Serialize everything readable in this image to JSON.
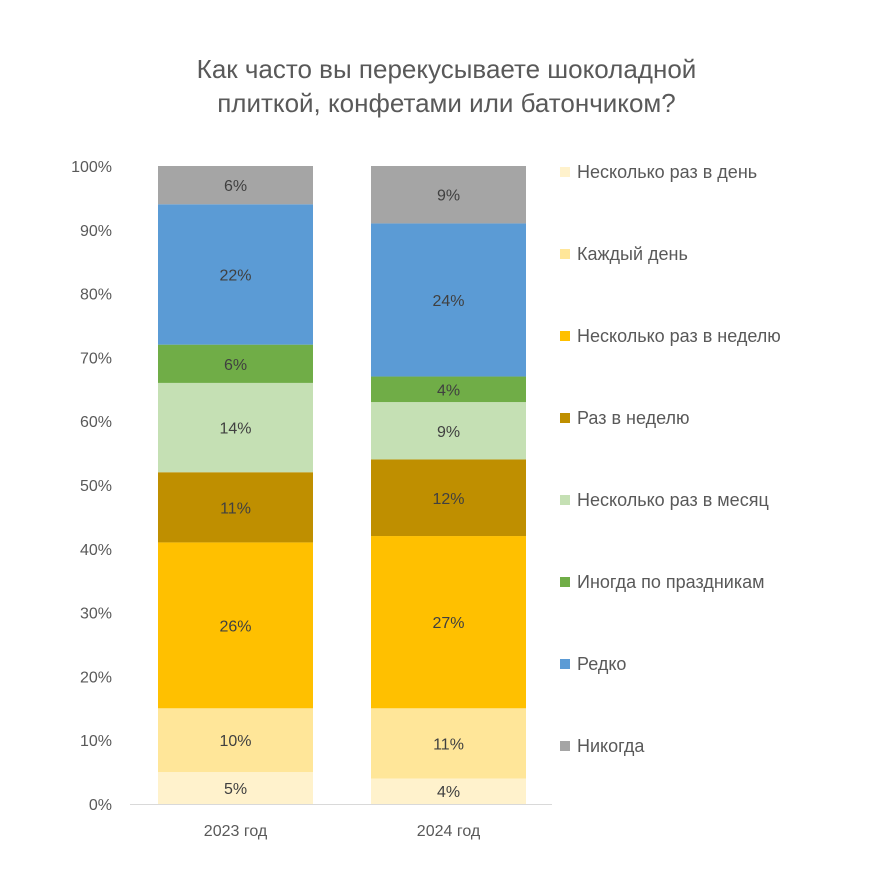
{
  "chart_data": {
    "type": "bar",
    "stacked": true,
    "title_lines": [
      "Как часто вы перекусываете шоколадной",
      "плиткой, конфетами или батончиком?"
    ],
    "categories": [
      "2023 год",
      "2024 год"
    ],
    "ylim": [
      0,
      100
    ],
    "yticks": [
      "0%",
      "10%",
      "20%",
      "30%",
      "40%",
      "50%",
      "60%",
      "70%",
      "80%",
      "90%",
      "100%"
    ],
    "legend_position": "right",
    "grid": false,
    "series": [
      {
        "name": "Несколько раз в день",
        "color": "#FFF2CC",
        "values": [
          5,
          4
        ]
      },
      {
        "name": "Каждый день",
        "color": "#FFE699",
        "values": [
          10,
          11
        ]
      },
      {
        "name": "Несколько раз в неделю",
        "color": "#FFC000",
        "values": [
          26,
          27
        ]
      },
      {
        "name": "Раз в неделю",
        "color": "#BF8F00",
        "values": [
          11,
          12
        ]
      },
      {
        "name": "Несколько раз в месяц",
        "color": "#C5E0B4",
        "values": [
          14,
          9
        ]
      },
      {
        "name": "Иногда по праздникам",
        "color": "#70AD47",
        "values": [
          6,
          4
        ]
      },
      {
        "name": "Редко",
        "color": "#5B9BD5",
        "values": [
          22,
          24
        ]
      },
      {
        "name": "Никогда",
        "color": "#A5A5A5",
        "values": [
          6,
          9
        ]
      }
    ]
  }
}
